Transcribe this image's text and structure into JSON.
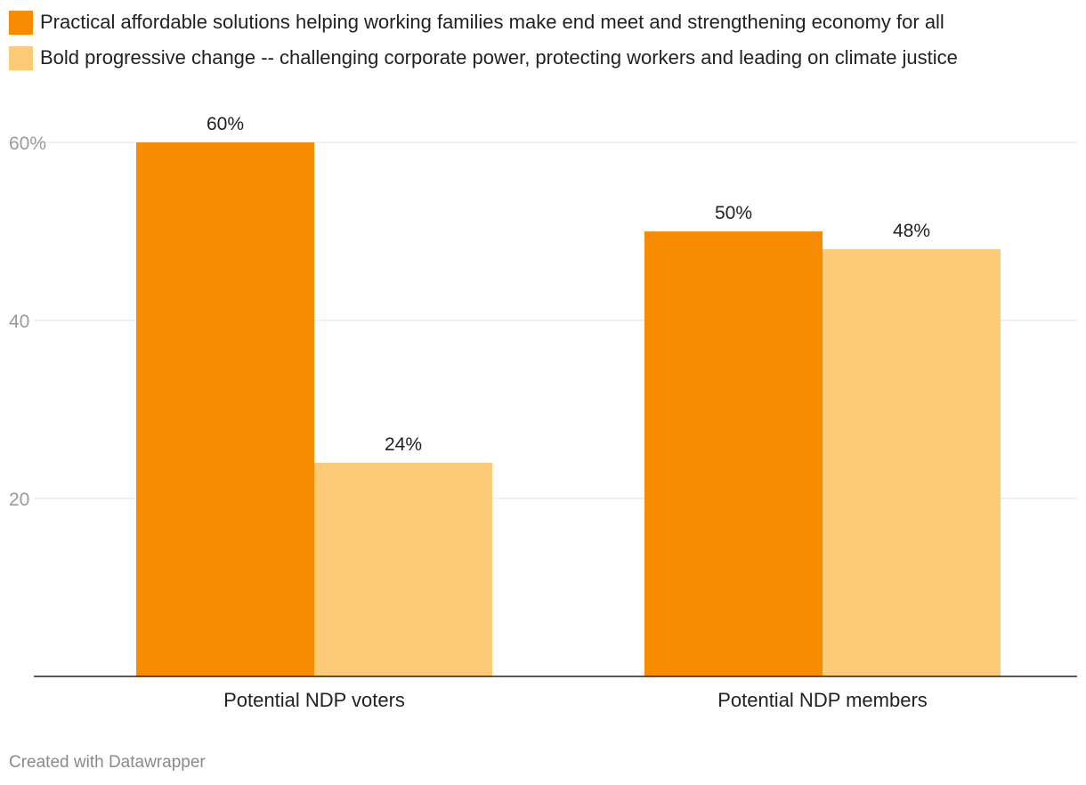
{
  "chart_data": {
    "type": "bar",
    "categories": [
      "Potential NDP voters",
      "Potential NDP members"
    ],
    "series": [
      {
        "name": "Practical affordable solutions helping working families make end meet and strengthening economy for all",
        "values": [
          60,
          50
        ],
        "color": "#f78c00"
      },
      {
        "name": "Bold progressive change -- challenging corporate power, protecting workers and leading on climate justice",
        "values": [
          24,
          48
        ],
        "color": "#fdcb77"
      }
    ],
    "data_labels": [
      [
        "60%",
        "50%"
      ],
      [
        "24%",
        "48%"
      ]
    ],
    "yticks": [
      {
        "value": 60,
        "label": "60%"
      },
      {
        "value": 40,
        "label": "40"
      },
      {
        "value": 20,
        "label": "20"
      }
    ],
    "ylim": [
      0,
      60
    ],
    "grid": true,
    "legend_position": "top-left",
    "title": "",
    "xlabel": "",
    "ylabel": ""
  },
  "footer": {
    "credit": "Created with Datawrapper"
  },
  "colors": {
    "grid": "#e2e2e2",
    "axis": "#222222",
    "tick_text": "#9a9a9a"
  }
}
